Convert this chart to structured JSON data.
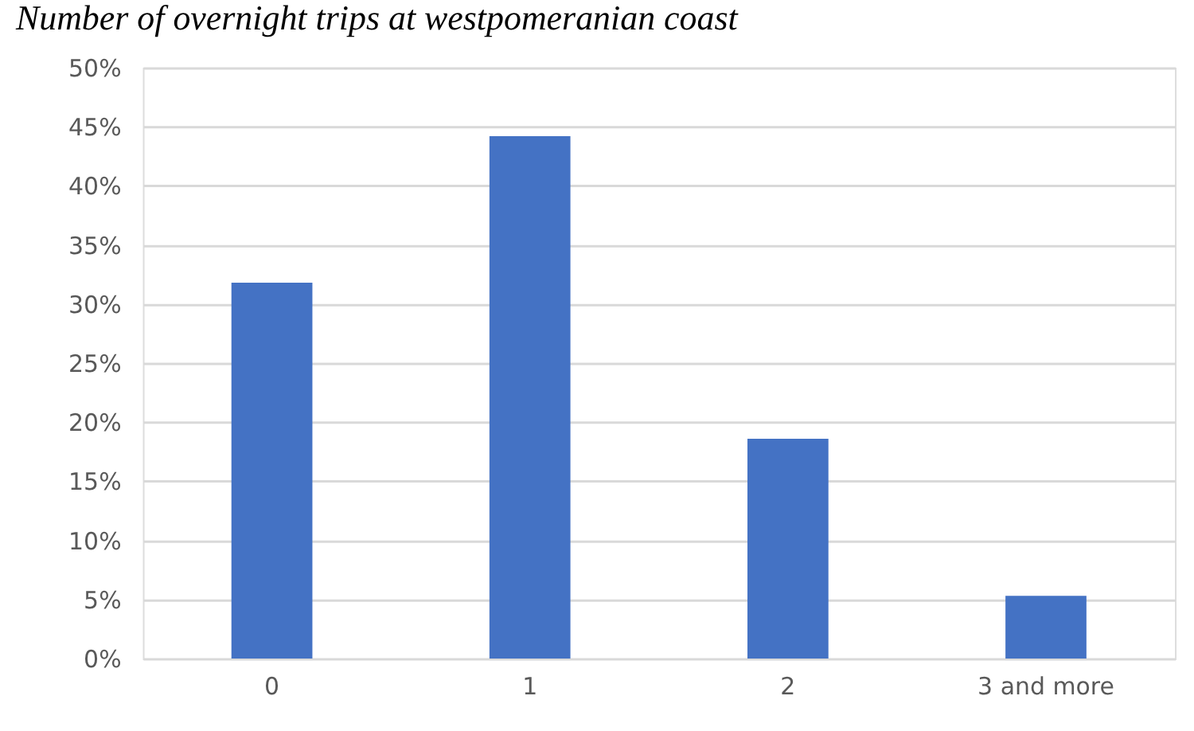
{
  "chart_data": {
    "type": "bar",
    "title": "Number of overnight trips at westpomeranian coast",
    "categories": [
      "0",
      "1",
      "2",
      "3 and more"
    ],
    "series": [
      {
        "color": "#4472c4",
        "values": [
          31.8,
          44.2,
          18.6,
          5.3
        ]
      }
    ],
    "ylim": [
      0,
      50
    ],
    "yticks": [
      {
        "value": 0,
        "label": "0%"
      },
      {
        "value": 5,
        "label": "5%"
      },
      {
        "value": 10,
        "label": "10%"
      },
      {
        "value": 15,
        "label": "15%"
      },
      {
        "value": 20,
        "label": "20%"
      },
      {
        "value": 25,
        "label": "25%"
      },
      {
        "value": 30,
        "label": "30%"
      },
      {
        "value": 35,
        "label": "35%"
      },
      {
        "value": 40,
        "label": "40%"
      },
      {
        "value": 45,
        "label": "45%"
      },
      {
        "value": 50,
        "label": "50%"
      }
    ],
    "grid": "y",
    "legend": false
  }
}
